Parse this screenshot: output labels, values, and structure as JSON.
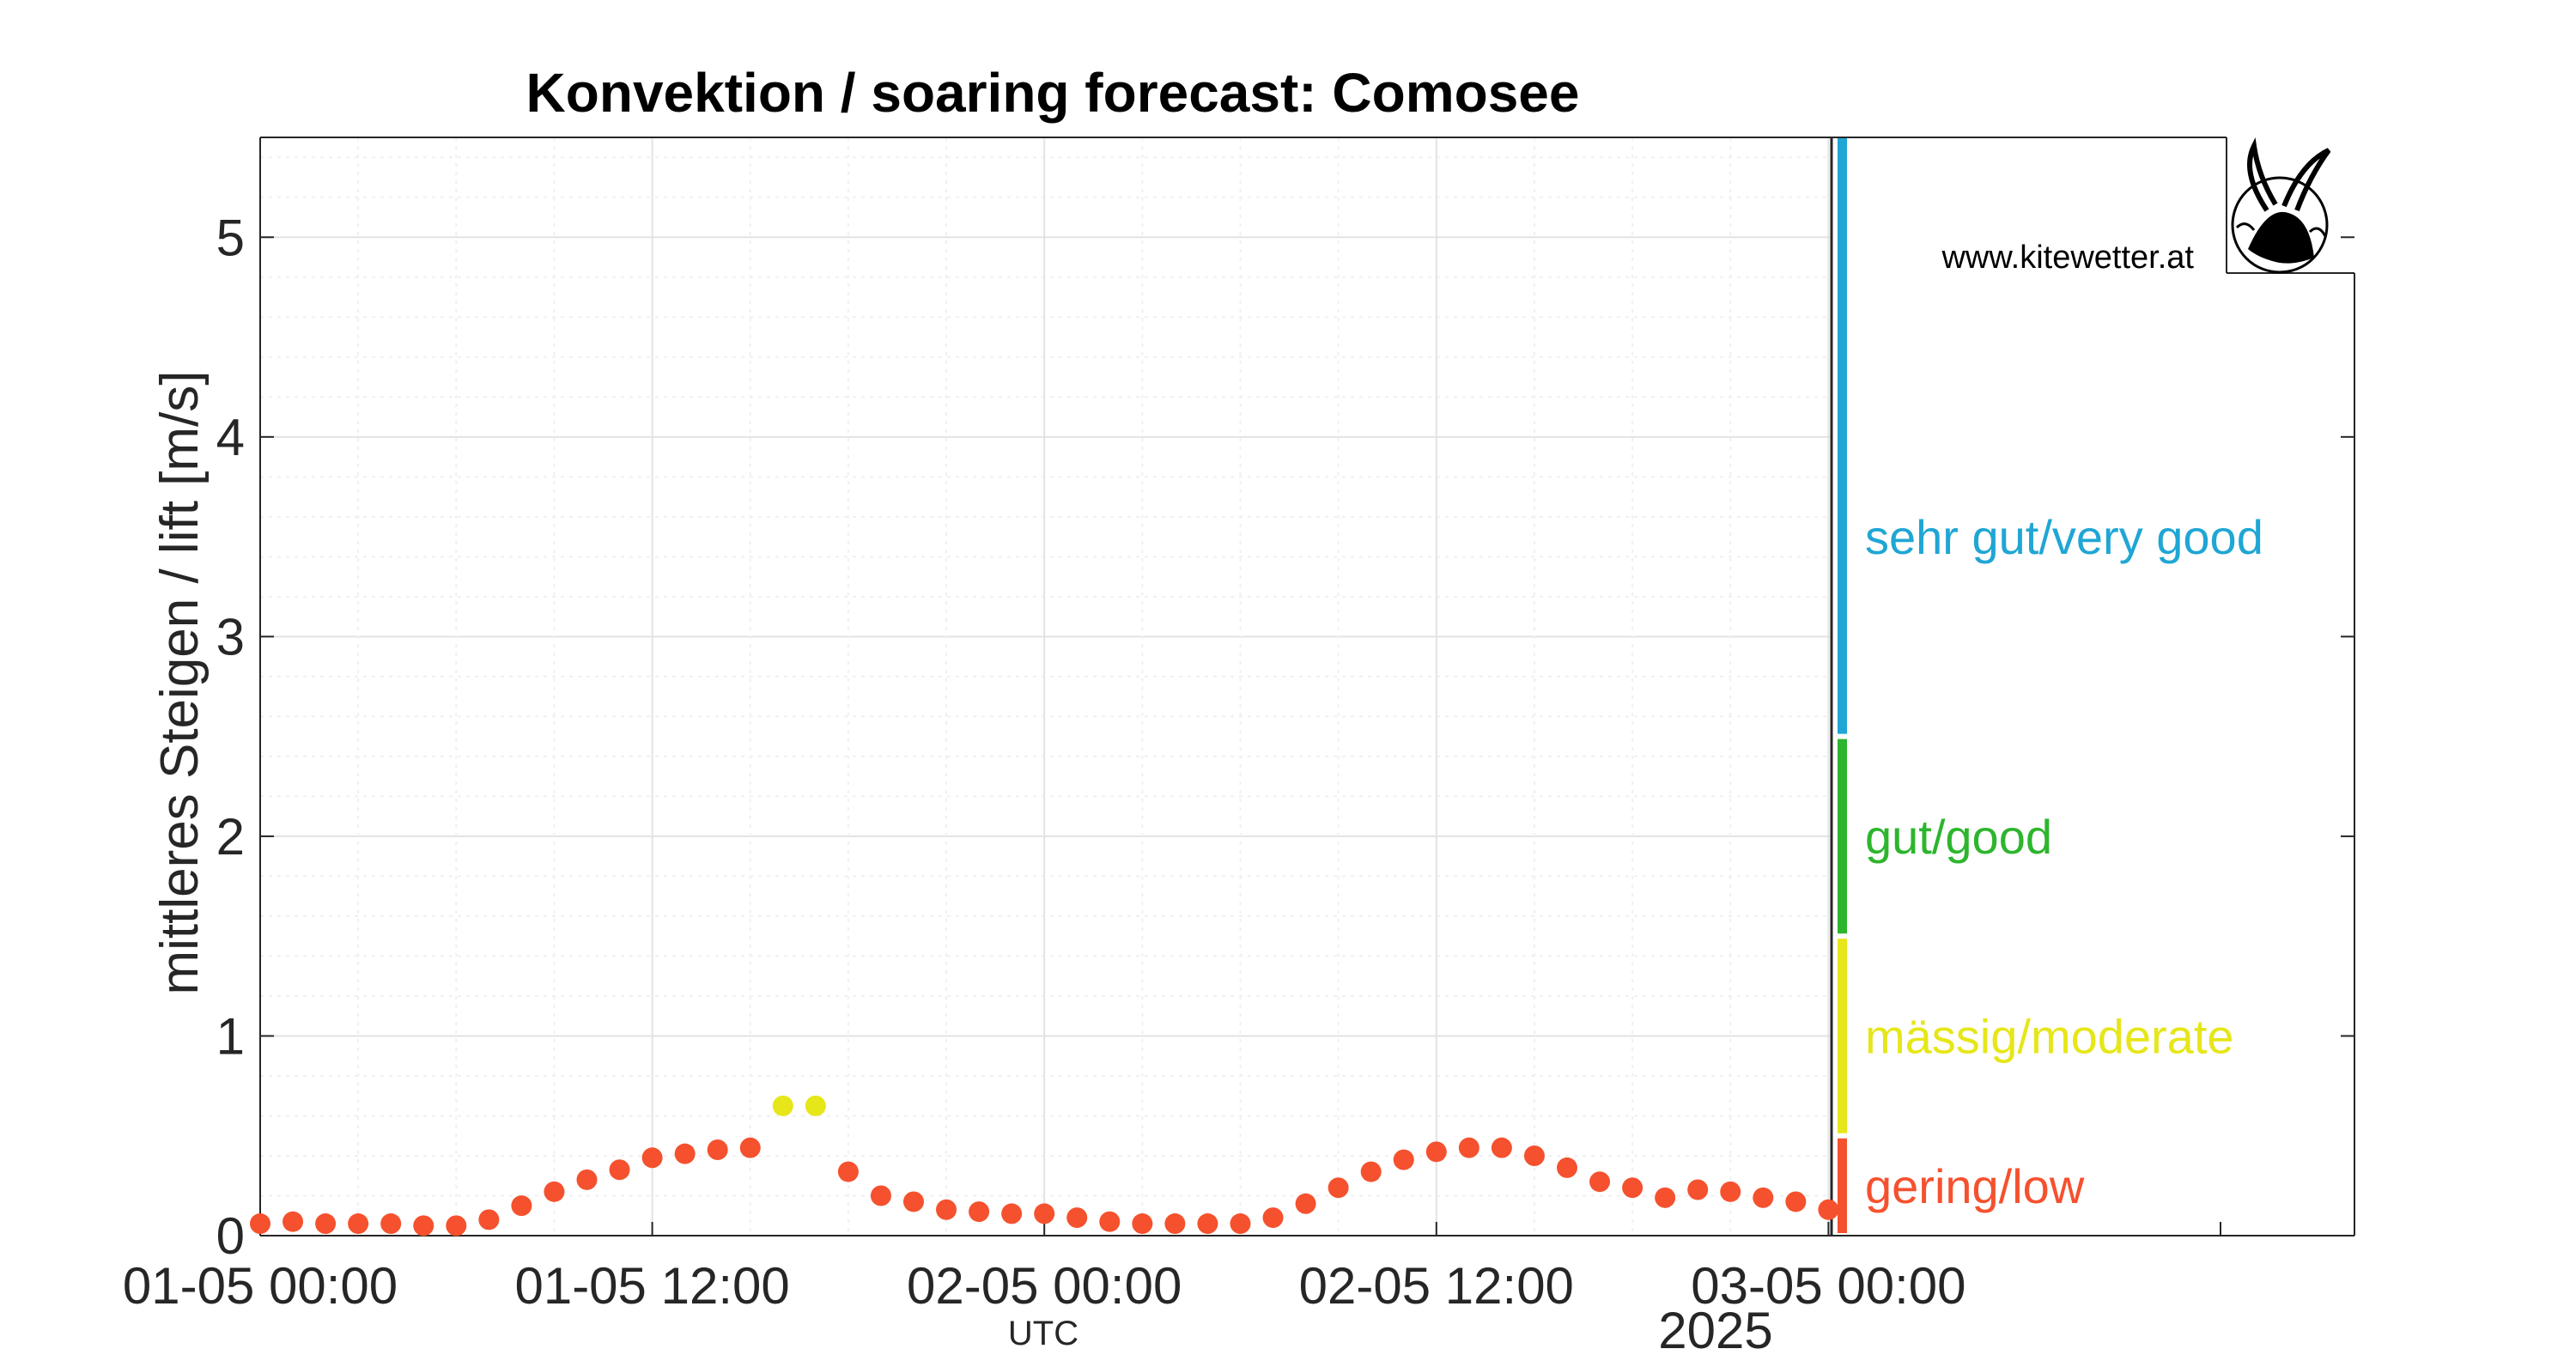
{
  "chart_data": {
    "type": "scatter",
    "title": "Konvektion / soaring forecast: Comosee",
    "ylabel": "mittleres Steigen / lift [m/s]",
    "xlabel": "UTC",
    "year_label": "2025",
    "watermark": "www.kitewetter.at",
    "ylim": [
      0,
      5.5
    ],
    "y_ticks": [
      "0",
      "1",
      "2",
      "3",
      "4",
      "5"
    ],
    "x_ticks": [
      "01-05 00:00",
      "01-05 12:00",
      "02-05 00:00",
      "02-05 12:00",
      "03-05 00:00"
    ],
    "grid": true,
    "categories": [
      {
        "label": "sehr gut/very good",
        "color": "#1fa6d4",
        "range": [
          2.5,
          5.5
        ]
      },
      {
        "label": "gut/good",
        "color": "#2db52d",
        "range": [
          1.5,
          2.5
        ]
      },
      {
        "label": "mässig/moderate",
        "color": "#e6e619",
        "range": [
          0.5,
          1.5
        ]
      },
      {
        "label": "gering/low",
        "color": "#f5512e",
        "range": [
          0,
          0.5
        ]
      }
    ],
    "x_unit": "hours since 01-05 00:00 UTC",
    "points": [
      {
        "x": 0,
        "y": 0.06
      },
      {
        "x": 1,
        "y": 0.07
      },
      {
        "x": 2,
        "y": 0.06
      },
      {
        "x": 3,
        "y": 0.06
      },
      {
        "x": 4,
        "y": 0.06
      },
      {
        "x": 5,
        "y": 0.05
      },
      {
        "x": 6,
        "y": 0.05
      },
      {
        "x": 7,
        "y": 0.08
      },
      {
        "x": 8,
        "y": 0.15
      },
      {
        "x": 9,
        "y": 0.22
      },
      {
        "x": 10,
        "y": 0.28
      },
      {
        "x": 11,
        "y": 0.33
      },
      {
        "x": 12,
        "y": 0.39
      },
      {
        "x": 13,
        "y": 0.41
      },
      {
        "x": 14,
        "y": 0.43
      },
      {
        "x": 15,
        "y": 0.44
      },
      {
        "x": 16,
        "y": 0.65
      },
      {
        "x": 17,
        "y": 0.65
      },
      {
        "x": 18,
        "y": 0.32
      },
      {
        "x": 19,
        "y": 0.2
      },
      {
        "x": 20,
        "y": 0.17
      },
      {
        "x": 21,
        "y": 0.13
      },
      {
        "x": 22,
        "y": 0.12
      },
      {
        "x": 23,
        "y": 0.11
      },
      {
        "x": 24,
        "y": 0.11
      },
      {
        "x": 25,
        "y": 0.09
      },
      {
        "x": 26,
        "y": 0.07
      },
      {
        "x": 27,
        "y": 0.06
      },
      {
        "x": 28,
        "y": 0.06
      },
      {
        "x": 29,
        "y": 0.06
      },
      {
        "x": 30,
        "y": 0.06
      },
      {
        "x": 31,
        "y": 0.09
      },
      {
        "x": 32,
        "y": 0.16
      },
      {
        "x": 33,
        "y": 0.24
      },
      {
        "x": 34,
        "y": 0.32
      },
      {
        "x": 35,
        "y": 0.38
      },
      {
        "x": 36,
        "y": 0.42
      },
      {
        "x": 37,
        "y": 0.44
      },
      {
        "x": 38,
        "y": 0.44
      },
      {
        "x": 39,
        "y": 0.4
      },
      {
        "x": 40,
        "y": 0.34
      },
      {
        "x": 41,
        "y": 0.27
      },
      {
        "x": 42,
        "y": 0.24
      },
      {
        "x": 43,
        "y": 0.19
      },
      {
        "x": 44,
        "y": 0.23
      },
      {
        "x": 45,
        "y": 0.22
      },
      {
        "x": 46,
        "y": 0.19
      },
      {
        "x": 47,
        "y": 0.17
      },
      {
        "x": 48,
        "y": 0.13
      }
    ]
  }
}
